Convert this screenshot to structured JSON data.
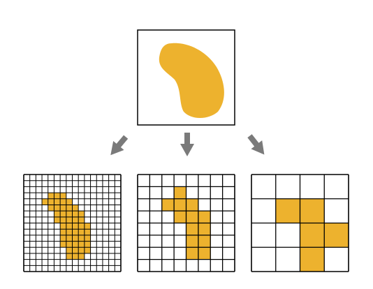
{
  "diagram": {
    "shape_color": "#EDB22E",
    "grid_line_color": "#000000",
    "arrow_color": "#7A7A7A",
    "source_panel": {
      "name": "continuous-shape"
    },
    "grids": [
      {
        "name": "fine-grid",
        "cells_per_side": 16,
        "filled": [
          [
            3,
            4
          ],
          [
            3,
            5
          ],
          [
            3,
            6
          ],
          [
            4,
            3
          ],
          [
            4,
            4
          ],
          [
            4,
            5
          ],
          [
            4,
            6
          ],
          [
            4,
            7
          ],
          [
            5,
            4
          ],
          [
            5,
            5
          ],
          [
            5,
            6
          ],
          [
            5,
            7
          ],
          [
            5,
            8
          ],
          [
            6,
            5
          ],
          [
            6,
            6
          ],
          [
            6,
            7
          ],
          [
            6,
            8
          ],
          [
            6,
            9
          ],
          [
            7,
            5
          ],
          [
            7,
            6
          ],
          [
            7,
            7
          ],
          [
            7,
            8
          ],
          [
            7,
            9
          ],
          [
            8,
            6
          ],
          [
            8,
            7
          ],
          [
            8,
            8
          ],
          [
            8,
            9
          ],
          [
            8,
            10
          ],
          [
            9,
            6
          ],
          [
            9,
            7
          ],
          [
            9,
            8
          ],
          [
            9,
            9
          ],
          [
            9,
            10
          ],
          [
            10,
            6
          ],
          [
            10,
            7
          ],
          [
            10,
            8
          ],
          [
            10,
            9
          ],
          [
            10,
            10
          ],
          [
            11,
            6
          ],
          [
            11,
            7
          ],
          [
            11,
            8
          ],
          [
            11,
            9
          ],
          [
            11,
            10
          ],
          [
            12,
            7
          ],
          [
            12,
            8
          ],
          [
            12,
            9
          ],
          [
            12,
            10
          ],
          [
            13,
            7
          ],
          [
            13,
            8
          ],
          [
            13,
            9
          ]
        ]
      },
      {
        "name": "medium-grid",
        "cells_per_side": 8,
        "filled": [
          [
            1,
            3
          ],
          [
            2,
            2
          ],
          [
            2,
            3
          ],
          [
            2,
            4
          ],
          [
            3,
            3
          ],
          [
            3,
            4
          ],
          [
            3,
            5
          ],
          [
            4,
            4
          ],
          [
            4,
            5
          ],
          [
            5,
            4
          ],
          [
            5,
            5
          ],
          [
            6,
            4
          ],
          [
            6,
            5
          ]
        ]
      },
      {
        "name": "coarse-grid",
        "cells_per_side": 4,
        "filled": [
          [
            1,
            1
          ],
          [
            1,
            2
          ],
          [
            2,
            2
          ],
          [
            2,
            3
          ],
          [
            3,
            2
          ]
        ]
      }
    ]
  }
}
